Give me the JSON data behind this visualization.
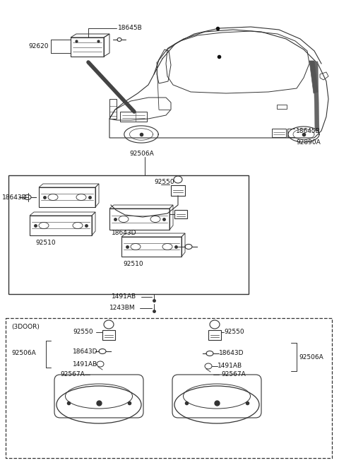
{
  "bg_color": "#ffffff",
  "line_color": "#333333",
  "dark_color": "#111111",
  "gray_color": "#888888",
  "font_size": 6.5,
  "figw": 4.8,
  "figh": 6.55,
  "dpi": 100,
  "labels": {
    "18645B_top": "18645B",
    "92620": "92620",
    "92506A_top": "92506A",
    "18645B_right": "18645B",
    "92890A": "92890A",
    "18643D_left": "18643D",
    "92510_left": "92510",
    "92550_mid": "92550",
    "18643D_right": "18643D",
    "92510_right": "92510",
    "1491AB": "1491AB",
    "1243BM": "1243BM",
    "3door": "(3DOOR)",
    "92550_3l": "92550",
    "92506A_3l": "92506A",
    "18643D_3l": "18643D",
    "1491AB_3l": "1491AB",
    "92567A_3l": "92567A",
    "92550_3r": "92550",
    "18643D_3r": "18643D",
    "1491AB_3r": "1491AB",
    "92567A_3r": "92567A",
    "92506A_3r": "92506A"
  }
}
